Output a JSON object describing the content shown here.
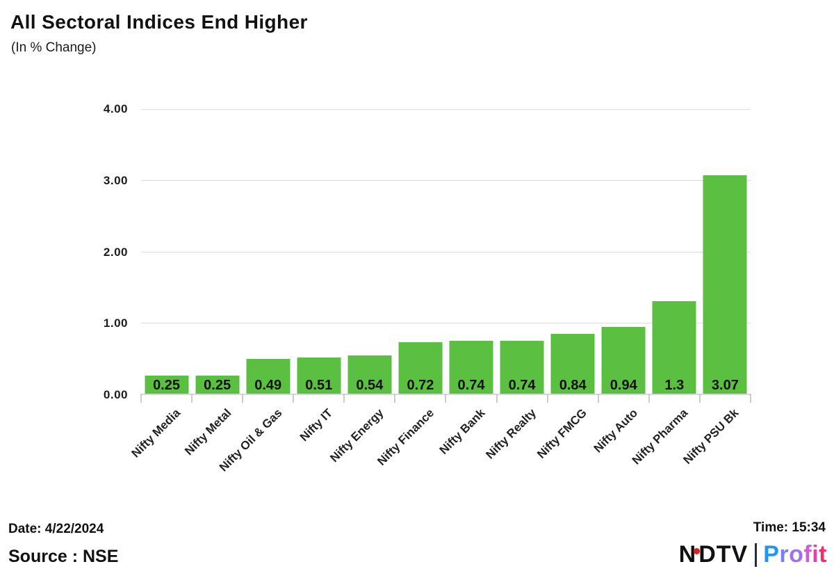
{
  "header": {
    "title": "All Sectoral Indices End Higher",
    "subtitle": "(In % Change)"
  },
  "chart_data": {
    "type": "bar",
    "title": "All Sectoral Indices End Higher",
    "subtitle": "(In % Change)",
    "categories": [
      "Nifty Media",
      "Nifty Metal",
      "Nifty Oil & Gas",
      "Nifty IT",
      "Nifty Energy",
      "Nifty Finance",
      "Nifty Bank",
      "Nifty Realty",
      "Nifty FMCG",
      "Nifty Auto",
      "Nifty Pharma",
      "Nifty PSU Bk"
    ],
    "values": [
      0.25,
      0.25,
      0.49,
      0.51,
      0.54,
      0.72,
      0.74,
      0.74,
      0.84,
      0.94,
      1.3,
      3.07
    ],
    "value_labels": [
      "0.25",
      "0.25",
      "0.49",
      "0.51",
      "0.54",
      "0.72",
      "0.74",
      "0.74",
      "0.84",
      "0.94",
      "1.3",
      "3.07"
    ],
    "xlabel": "",
    "ylabel": "",
    "ylim": [
      0,
      4
    ],
    "yticks": [
      "4.00",
      "3.00",
      "2.00",
      "1.00",
      "0.00"
    ],
    "grid": true,
    "legend": false,
    "bar_color": "#5bbf41",
    "gridline_color": "#dcdcdc",
    "axis_color": "#d8d8d8"
  },
  "footer": {
    "date_label": "Date: 4/22/2024",
    "source_label": "Source : NSE",
    "time_label": "Time: 15:34"
  },
  "logo": {
    "ndtv_part1": "N",
    "ndtv_part2": "DTV",
    "red_dot_color": "#e3201f",
    "brand": "Profit",
    "brand_letter_colors": [
      "#2196f3",
      "#7b7ef6",
      "#a06ef2",
      "#cb5fd6",
      "#ea3fab",
      "#ee2f6d"
    ]
  }
}
